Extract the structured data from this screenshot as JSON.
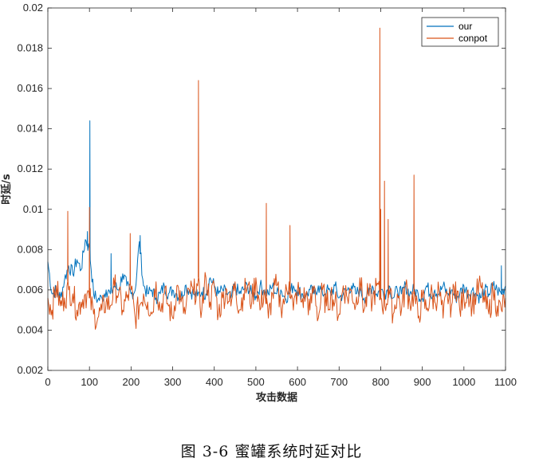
{
  "caption": "图 3-6   蜜罐系统时延对比",
  "colors": {
    "our": "#0072BD",
    "conpot": "#D95319",
    "axis": "#262626",
    "grid": "#ffffff"
  },
  "chart_data": {
    "type": "line",
    "title": "",
    "xlabel": "攻击数据",
    "ylabel": "时延/s",
    "xlim": [
      0,
      1100
    ],
    "ylim": [
      0.002,
      0.02
    ],
    "xticks": [
      0,
      100,
      200,
      300,
      400,
      500,
      600,
      700,
      800,
      900,
      1000,
      1100
    ],
    "xtick_labels": [
      "0",
      "100",
      "200",
      "300",
      "400",
      "500",
      "600",
      "700",
      "800",
      "900",
      "1000",
      "1100"
    ],
    "yticks": [
      0.002,
      0.004,
      0.006,
      0.008,
      0.01,
      0.012,
      0.014,
      0.016,
      0.018,
      0.02
    ],
    "ytick_labels": [
      "0.002",
      "0.004",
      "0.006",
      "0.008",
      "0.01",
      "0.012",
      "0.014",
      "0.016",
      "0.018",
      "0.02"
    ],
    "grid": false,
    "legend": "top-right",
    "series": [
      {
        "name": "our",
        "color": "#0072BD",
        "x": [
          0,
          10,
          20,
          30,
          40,
          50,
          60,
          70,
          80,
          90,
          100,
          110,
          120,
          130,
          140,
          150,
          160,
          170,
          180,
          190,
          200,
          210,
          220,
          230,
          240,
          250,
          260,
          270,
          280,
          290,
          300,
          310,
          320,
          330,
          340,
          350,
          360,
          370,
          380,
          390,
          400,
          410,
          420,
          430,
          440,
          450,
          460,
          470,
          480,
          490,
          500,
          510,
          520,
          530,
          540,
          550,
          560,
          570,
          580,
          590,
          600,
          610,
          620,
          630,
          640,
          650,
          660,
          670,
          680,
          690,
          700,
          710,
          720,
          730,
          740,
          750,
          760,
          770,
          780,
          790,
          800,
          810,
          820,
          830,
          840,
          850,
          860,
          870,
          880,
          890,
          900,
          910,
          920,
          930,
          940,
          950,
          960,
          970,
          980,
          990,
          1000,
          1010,
          1020,
          1030,
          1040,
          1050,
          1060,
          1070,
          1080,
          1090,
          1100
        ],
        "y": [
          0.0074,
          0.0058,
          0.006,
          0.0056,
          0.0065,
          0.0072,
          0.0068,
          0.0075,
          0.007,
          0.0085,
          0.008,
          0.0058,
          0.0055,
          0.0056,
          0.006,
          0.0058,
          0.0062,
          0.006,
          0.0068,
          0.0062,
          0.0058,
          0.006,
          0.0084,
          0.0062,
          0.0058,
          0.006,
          0.0056,
          0.0058,
          0.0062,
          0.0058,
          0.006,
          0.0058,
          0.0056,
          0.0062,
          0.006,
          0.0058,
          0.0057,
          0.0059,
          0.0058,
          0.0066,
          0.0062,
          0.0058,
          0.006,
          0.0058,
          0.0056,
          0.0062,
          0.0058,
          0.006,
          0.0062,
          0.0058,
          0.0057,
          0.0062,
          0.006,
          0.0058,
          0.0062,
          0.0058,
          0.006,
          0.0056,
          0.0058,
          0.0062,
          0.006,
          0.0058,
          0.0057,
          0.006,
          0.0058,
          0.0062,
          0.0058,
          0.006,
          0.0058,
          0.0062,
          0.0056,
          0.0058,
          0.006,
          0.0062,
          0.0058,
          0.006,
          0.0056,
          0.0058,
          0.0062,
          0.0058,
          0.006,
          0.0058,
          0.0062,
          0.0056,
          0.006,
          0.0058,
          0.0062,
          0.0058,
          0.006,
          0.0058,
          0.0056,
          0.0062,
          0.0058,
          0.006,
          0.0058,
          0.0062,
          0.0058,
          0.006,
          0.0056,
          0.0058,
          0.0062,
          0.0058,
          0.006,
          0.0058,
          0.0056,
          0.006,
          0.0058,
          0.0062,
          0.006,
          0.0058,
          0.0062
        ],
        "peaks": [
          {
            "x": 101,
            "y": 0.0144
          },
          {
            "x": 95,
            "y": 0.0089
          },
          {
            "x": 222,
            "y": 0.0087
          },
          {
            "x": 152,
            "y": 0.0078
          },
          {
            "x": 1090,
            "y": 0.0072
          }
        ]
      },
      {
        "name": "conpot",
        "color": "#D95319",
        "x": [
          0,
          10,
          20,
          30,
          40,
          50,
          60,
          70,
          80,
          90,
          100,
          110,
          120,
          130,
          140,
          150,
          160,
          170,
          180,
          190,
          200,
          210,
          220,
          230,
          240,
          250,
          260,
          270,
          280,
          290,
          300,
          310,
          320,
          330,
          340,
          350,
          360,
          370,
          380,
          390,
          400,
          410,
          420,
          430,
          440,
          450,
          460,
          470,
          480,
          490,
          500,
          510,
          520,
          530,
          540,
          550,
          560,
          570,
          580,
          590,
          600,
          610,
          620,
          630,
          640,
          650,
          660,
          670,
          680,
          690,
          700,
          710,
          720,
          730,
          740,
          750,
          760,
          770,
          780,
          790,
          800,
          810,
          820,
          830,
          840,
          850,
          860,
          870,
          880,
          890,
          900,
          910,
          920,
          930,
          940,
          950,
          960,
          970,
          980,
          990,
          1000,
          1010,
          1020,
          1030,
          1040,
          1050,
          1060,
          1070,
          1080,
          1090,
          1100
        ],
        "y": [
          0.0056,
          0.005,
          0.0062,
          0.0052,
          0.0056,
          0.006,
          0.0058,
          0.005,
          0.0054,
          0.0058,
          0.0056,
          0.0048,
          0.0046,
          0.005,
          0.0054,
          0.0052,
          0.0062,
          0.0058,
          0.005,
          0.0056,
          0.006,
          0.0046,
          0.0052,
          0.0058,
          0.0054,
          0.0048,
          0.0064,
          0.005,
          0.0058,
          0.0052,
          0.0046,
          0.0062,
          0.0054,
          0.0048,
          0.006,
          0.0058,
          0.0062,
          0.005,
          0.0066,
          0.0054,
          0.0062,
          0.0048,
          0.0056,
          0.006,
          0.0052,
          0.0064,
          0.005,
          0.0058,
          0.0062,
          0.0054,
          0.0066,
          0.005,
          0.006,
          0.0046,
          0.0058,
          0.0062,
          0.0052,
          0.0056,
          0.0064,
          0.005,
          0.006,
          0.0054,
          0.0058,
          0.005,
          0.0062,
          0.0046,
          0.006,
          0.0052,
          0.0058,
          0.0054,
          0.0048,
          0.0062,
          0.0056,
          0.006,
          0.0052,
          0.0066,
          0.005,
          0.0058,
          0.0054,
          0.0062,
          0.0056,
          0.0052,
          0.006,
          0.0048,
          0.0058,
          0.005,
          0.0062,
          0.0054,
          0.0058,
          0.0046,
          0.0056,
          0.005,
          0.0058,
          0.0054,
          0.006,
          0.0046,
          0.0058,
          0.0052,
          0.0064,
          0.005,
          0.0056,
          0.006,
          0.0052,
          0.0058,
          0.0062,
          0.0054,
          0.0048,
          0.006,
          0.0052,
          0.005,
          0.0056
        ],
        "peaks": [
          {
            "x": 798,
            "y": 0.019
          },
          {
            "x": 362,
            "y": 0.0164
          },
          {
            "x": 809,
            "y": 0.0114
          },
          {
            "x": 880,
            "y": 0.0117
          },
          {
            "x": 525,
            "y": 0.0103
          },
          {
            "x": 100,
            "y": 0.0101
          },
          {
            "x": 48,
            "y": 0.0099
          },
          {
            "x": 800,
            "y": 0.01
          },
          {
            "x": 818,
            "y": 0.0095
          },
          {
            "x": 198,
            "y": 0.0088
          },
          {
            "x": 582,
            "y": 0.0092
          }
        ]
      }
    ]
  }
}
